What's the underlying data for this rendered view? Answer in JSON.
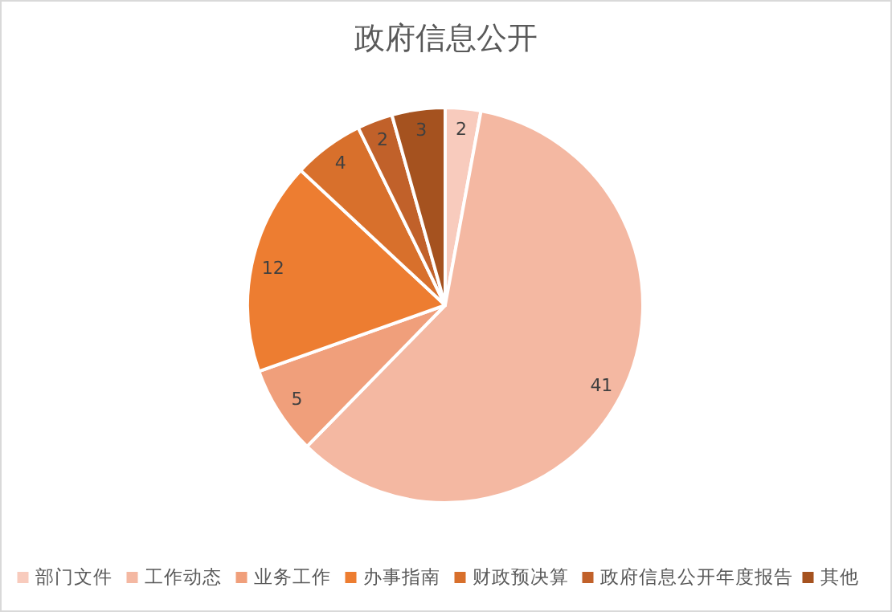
{
  "chart_data": {
    "type": "pie",
    "title": "政府信息公开",
    "categories": [
      "部门文件",
      "工作动态",
      "业务工作",
      "办事指南",
      "财政预决算",
      "政府信息公开年度报告",
      "其他"
    ],
    "values": [
      2,
      41,
      5,
      12,
      4,
      2,
      3
    ],
    "colors": [
      "#f8cbbd",
      "#f4b8a2",
      "#f09f7b",
      "#ed7d31",
      "#d8702c",
      "#c1612a",
      "#a5521f"
    ],
    "data_labels": true,
    "legend": "bottom"
  }
}
